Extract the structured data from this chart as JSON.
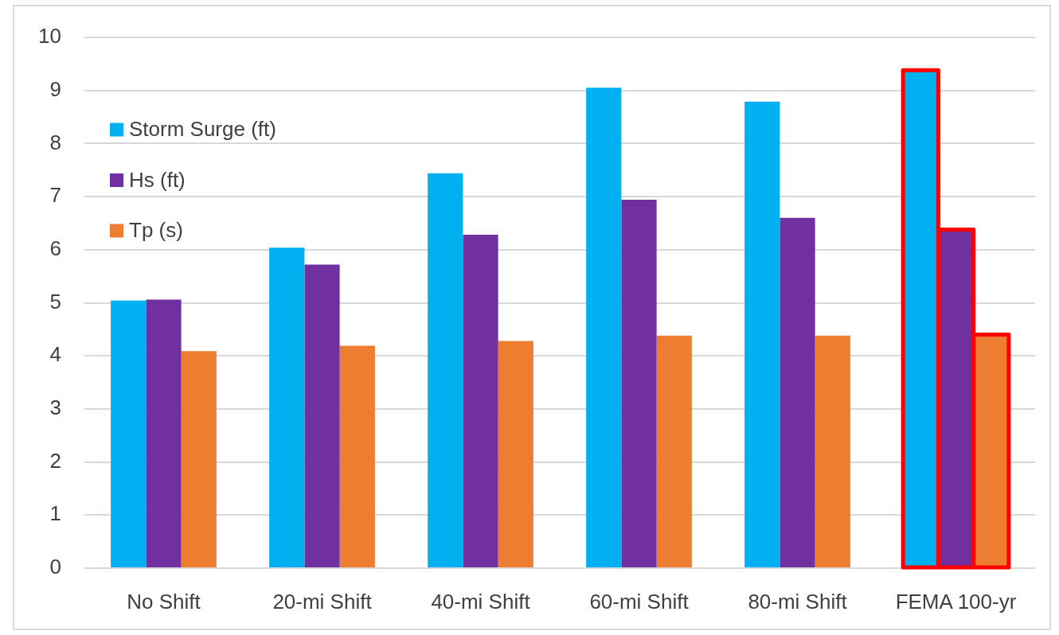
{
  "chart_data": {
    "type": "bar",
    "categories": [
      "No Shift",
      "20-mi Shift",
      "40-mi Shift",
      "60-mi Shift",
      "80-mi Shift",
      "FEMA 100-yr"
    ],
    "series": [
      {
        "name": "Storm Surge (ft)",
        "color": "#00b0f0",
        "values": [
          5.04,
          6.04,
          7.44,
          9.05,
          8.79,
          9.38
        ]
      },
      {
        "name": "Hs (ft)",
        "color": "#7030a0",
        "values": [
          5.06,
          5.72,
          6.28,
          6.94,
          6.6,
          6.38
        ]
      },
      {
        "name": "Tp (s)",
        "color": "#ed7d31",
        "values": [
          4.09,
          4.19,
          4.28,
          4.38,
          4.38,
          4.4
        ]
      }
    ],
    "ylim": [
      0,
      10
    ],
    "yticks": [
      0,
      1,
      2,
      3,
      4,
      5,
      6,
      7,
      8,
      9,
      10
    ],
    "grid": "y",
    "legend": "top left"
  }
}
